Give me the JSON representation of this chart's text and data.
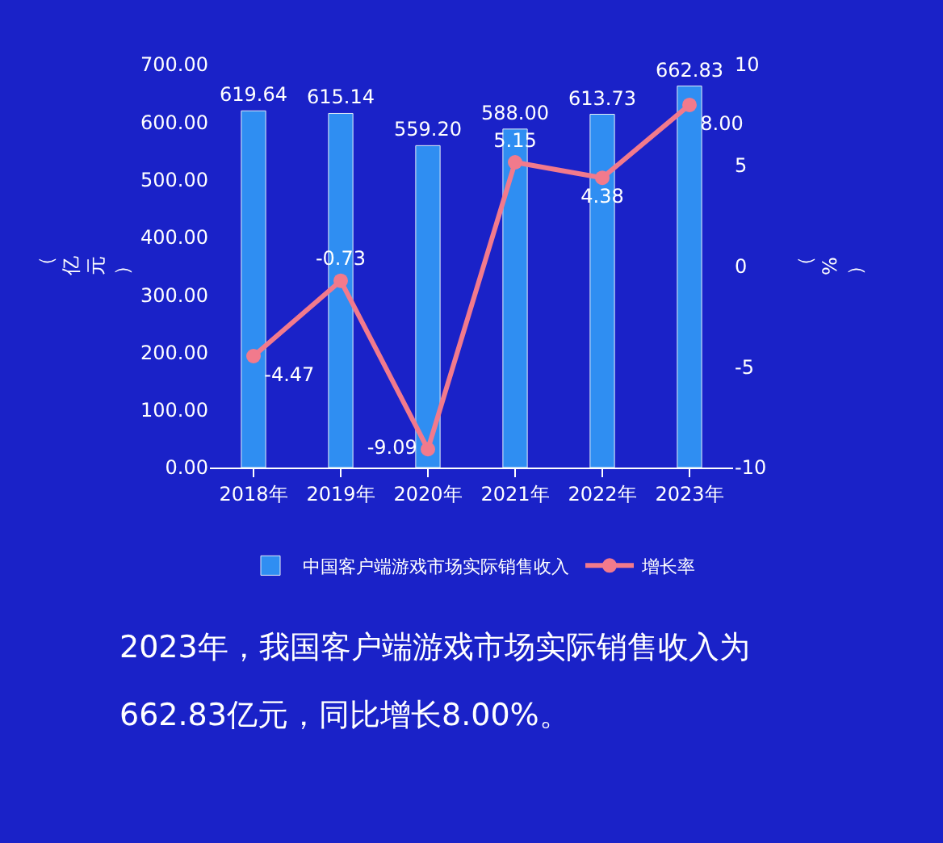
{
  "chart_data": {
    "type": "bar",
    "categories": [
      "2018年",
      "2019年",
      "2020年",
      "2021年",
      "2022年",
      "2023年"
    ],
    "series": [
      {
        "name": "中国客户端游戏市场实际销售收入",
        "color": "#2f8ef2",
        "values": [
          619.64,
          615.14,
          559.2,
          588.0,
          613.73,
          662.83
        ],
        "value_labels": [
          "619.64",
          "615.14",
          "559.20",
          "588.00",
          "613.73",
          "662.83"
        ]
      },
      {
        "name": "增长率",
        "type": "line",
        "axis": "y2",
        "color": "#f27a8c",
        "values": [
          -4.47,
          -0.73,
          -9.09,
          5.15,
          4.38,
          8.0
        ],
        "value_labels": [
          "-4.47",
          "-0.73",
          "-9.09",
          "5.15",
          "4.38",
          "8.00"
        ]
      }
    ],
    "ylabel": "（亿元）",
    "y2label": "（%）",
    "ylim": [
      0,
      700
    ],
    "yticks": [
      {
        "value": 0,
        "label": "0.00"
      },
      {
        "value": 100,
        "label": "100.00"
      },
      {
        "value": 200,
        "label": "200.00"
      },
      {
        "value": 300,
        "label": "300.00"
      },
      {
        "value": 400,
        "label": "400.00"
      },
      {
        "value": 500,
        "label": "500.00"
      },
      {
        "value": 600,
        "label": "600.00"
      },
      {
        "value": 700,
        "label": "700.00"
      }
    ],
    "y2lim": [
      -10,
      10
    ],
    "y2ticks": [
      -10,
      -5,
      0,
      5,
      10
    ],
    "marker": "circle",
    "grid": false,
    "legend": "bottom",
    "annotations": [
      "2023年，我国客户端游戏市场实际销售收入为",
      "662.83亿元，同比增长8.00%。"
    ]
  }
}
